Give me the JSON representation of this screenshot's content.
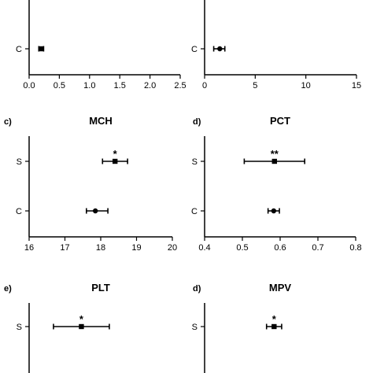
{
  "chart_data": [
    {
      "panel": "",
      "title": "",
      "type": "scatter",
      "x_ticks": [
        0,
        0.5,
        1.0,
        1.5,
        2.0,
        2.5
      ],
      "x_tick_labels": [
        "0.0",
        "0.5",
        "1.0",
        "1.5",
        "2.0",
        "2.5"
      ],
      "xlim": [
        0,
        2.5
      ],
      "categories": [
        "C"
      ],
      "points": [
        {
          "category": "C",
          "mean": 0.2,
          "low": 0.16,
          "high": 0.24,
          "marker": "square",
          "sig": ""
        }
      ]
    },
    {
      "panel": "",
      "title": "",
      "type": "scatter",
      "x_ticks": [
        0,
        5,
        10,
        15
      ],
      "x_tick_labels": [
        "0",
        "5",
        "10",
        "15"
      ],
      "xlim": [
        0,
        15
      ],
      "categories": [
        "C"
      ],
      "points": [
        {
          "category": "C",
          "mean": 1.5,
          "low": 0.9,
          "high": 2.0,
          "marker": "circle",
          "sig": ""
        }
      ]
    },
    {
      "panel": "c)",
      "title": "MCH",
      "type": "scatter",
      "x_ticks": [
        16,
        17,
        18,
        19,
        20
      ],
      "x_tick_labels": [
        "16",
        "17",
        "18",
        "19",
        "20"
      ],
      "xlim": [
        16,
        20
      ],
      "categories": [
        "S",
        "C"
      ],
      "points": [
        {
          "category": "S",
          "mean": 18.4,
          "low": 18.05,
          "high": 18.75,
          "marker": "square",
          "sig": "*"
        },
        {
          "category": "C",
          "mean": 17.85,
          "low": 17.6,
          "high": 18.2,
          "marker": "circle",
          "sig": ""
        }
      ]
    },
    {
      "panel": "d)",
      "title": "PCT",
      "type": "scatter",
      "x_ticks": [
        0.4,
        0.5,
        0.6,
        0.7,
        0.8
      ],
      "x_tick_labels": [
        "0.4",
        "0.5",
        "0.6",
        "0.7",
        "0.8"
      ],
      "xlim": [
        0.4,
        0.8
      ],
      "categories": [
        "S",
        "C"
      ],
      "points": [
        {
          "category": "S",
          "mean": 0.585,
          "low": 0.505,
          "high": 0.665,
          "marker": "square",
          "sig": "**"
        },
        {
          "category": "C",
          "mean": 0.583,
          "low": 0.568,
          "high": 0.598,
          "marker": "circle",
          "sig": ""
        }
      ]
    },
    {
      "panel": "e)",
      "title": "PLT",
      "type": "scatter",
      "x_ticks": [],
      "x_tick_labels": [],
      "xlim": [
        0,
        1
      ],
      "categories": [
        "S"
      ],
      "points": [
        {
          "category": "S",
          "mean": 0.365,
          "low": 0.17,
          "high": 0.56,
          "marker": "square",
          "sig": "*"
        }
      ]
    },
    {
      "panel": "d)",
      "title": "MPV",
      "type": "scatter",
      "x_ticks": [],
      "x_tick_labels": [],
      "xlim": [
        0,
        1
      ],
      "categories": [
        "S"
      ],
      "points": [
        {
          "category": "S",
          "mean": 0.46,
          "low": 0.41,
          "high": 0.51,
          "marker": "square",
          "sig": "*"
        }
      ]
    }
  ]
}
